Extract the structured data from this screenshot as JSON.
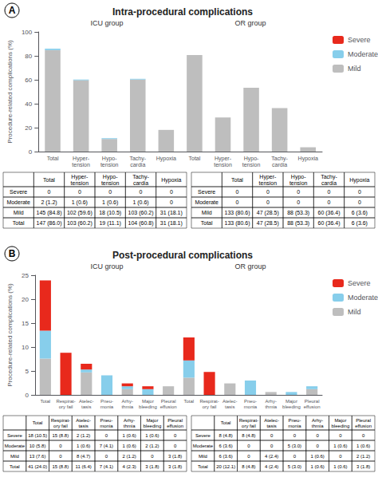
{
  "chart_data": [
    {
      "type": "bar",
      "title": "Intra-procedural complications",
      "panel_label": "A",
      "ylabel": "Procedure-related complications (%)",
      "groups": [
        "ICU group",
        "OR group"
      ],
      "categories": [
        "Total",
        "Hyper-\ntension",
        "Hypo-\ntension",
        "Tachy-\ncardia",
        "Hypoxia",
        "Total",
        "Hyper-\ntension",
        "Hypo-\ntension",
        "Tachy-\ncardia",
        "Hypoxia"
      ],
      "series": [
        {
          "name": "Mild",
          "color": "#BEBEBE",
          "values": [
            84.8,
            59.6,
            10.5,
            60.2,
            18.1,
            80.6,
            28.5,
            53.3,
            36.4,
            3.6
          ]
        },
        {
          "name": "Moderate",
          "color": "#87CEEB",
          "values": [
            1.2,
            0.6,
            0.6,
            0.6,
            0.0,
            0.0,
            0.0,
            0.0,
            0.0,
            0.0
          ]
        },
        {
          "name": "Severe",
          "color": "#E8291C",
          "values": [
            0.0,
            0.0,
            0.0,
            0.0,
            0.0,
            0.0,
            0.0,
            0.0,
            0.0,
            0.0
          ]
        }
      ],
      "stacked": true,
      "grid": false,
      "legend": "right",
      "ylim": [
        0,
        100
      ],
      "yticks": [
        0,
        20,
        40,
        60,
        80,
        100
      ],
      "tables": [
        {
          "columns": [
            "Total",
            "Hyper-\ntension",
            "Hypo-\ntension",
            "Tachy-\ncardia",
            "Hypoxia"
          ],
          "rows": [
            "Severe",
            "Moderate",
            "Mild",
            "Total"
          ],
          "cells": [
            [
              "0",
              "0",
              "0",
              "0",
              "0"
            ],
            [
              "2 (1.2)",
              "1 (0.6)",
              "1 (0.6)",
              "1 (0.6)",
              "0"
            ],
            [
              "145 (84.8)",
              "102 (59.6)",
              "18 (10.5)",
              "103 (60.2)",
              "31 (18.1)"
            ],
            [
              "147 (86.0)",
              "103 (60.2)",
              "19 (11.1)",
              "104 (60.8)",
              "31 (18.1)"
            ]
          ]
        },
        {
          "columns": [
            "Total",
            "Hyper-\ntension",
            "Hypo-\ntension",
            "Tachy-\ncardia",
            "Hypoxia"
          ],
          "rows": [
            "Severe",
            "Moderate",
            "Mild",
            "Total"
          ],
          "cells": [
            [
              "0",
              "0",
              "0",
              "0",
              "0"
            ],
            [
              "0",
              "0",
              "0",
              "0",
              "0"
            ],
            [
              "133 (80.6)",
              "47 (28.5)",
              "88 (53.3)",
              "60 (36.4)",
              "6 (3.6)"
            ],
            [
              "133 (80.6)",
              "47 (28.5)",
              "88 (53.3)",
              "60 (36.4)",
              "6 (3.6)"
            ]
          ]
        }
      ]
    },
    {
      "type": "bar",
      "title": "Post-procedural complications",
      "panel_label": "B",
      "ylabel": "Procedure-related complications (%)",
      "groups": [
        "ICU group",
        "OR group"
      ],
      "categories": [
        "Total",
        "Respirat-\nory fail",
        "Atelec-\ntasis",
        "Pneu-\nmonia",
        "Arhy-\nthmia",
        "Major\nbleeding",
        "Pleural\neffusion",
        "Total",
        "Respirat-\nory fail",
        "Atelec-\ntasis",
        "Pneu-\nmonia",
        "Arhy-\nthmia",
        "Major\nbleeding",
        "Pleural\neffusion"
      ],
      "series": [
        {
          "name": "Mild",
          "color": "#BEBEBE",
          "values": [
            7.6,
            0.0,
            4.7,
            0.0,
            1.2,
            0.0,
            1.8,
            3.6,
            0.0,
            2.4,
            0.0,
            0.6,
            0.0,
            1.2
          ]
        },
        {
          "name": "Moderate",
          "color": "#87CEEB",
          "values": [
            5.8,
            0.0,
            0.6,
            4.1,
            0.6,
            1.2,
            0.0,
            3.6,
            0.0,
            0.0,
            3.0,
            0.0,
            0.6,
            0.6
          ]
        },
        {
          "name": "Severe",
          "color": "#E8291C",
          "values": [
            10.5,
            8.8,
            1.2,
            0.0,
            0.6,
            0.6,
            0.0,
            4.8,
            4.8,
            0.0,
            0.0,
            0.0,
            0.0,
            0.0
          ]
        }
      ],
      "stacked": true,
      "grid": false,
      "legend": "right",
      "ylim": [
        0,
        25
      ],
      "yticks": [
        0,
        5,
        10,
        15,
        20,
        25
      ],
      "tables": [
        {
          "columns": [
            "Total",
            "Respirat-\nory fail",
            "Atelec-\ntasis",
            "Pneu-\nmonia",
            "Arhy-\nthmia",
            "Major\nbleeding",
            "Pleural\neffusion"
          ],
          "rows": [
            "Severe",
            "Moderate",
            "Mild",
            "Total"
          ],
          "cells": [
            [
              "18 (10.5)",
              "15 (8.8)",
              "2 (1.2)",
              "0",
              "1 (0.6)",
              "1 (0.6)",
              "0"
            ],
            [
              "10 (5.8)",
              "0",
              "1 (0.6)",
              "7 (4.1)",
              "1 (0.6)",
              "2 (1.2)",
              "0"
            ],
            [
              "13 (7.6)",
              "0",
              "8 (4.7)",
              "0",
              "2 (1.2)",
              "0",
              "3 (1.8)"
            ],
            [
              "41 (24.0)",
              "15 (8.8)",
              "11 (6.4)",
              "7 (4.1)",
              "4 (2.3)",
              "3 (1.8)",
              "3 (1.8)"
            ]
          ]
        },
        {
          "columns": [
            "Total",
            "Respirat-\nory fail",
            "Atelec-\ntasis",
            "Pneu-\nmonia",
            "Arhy-\nthmia",
            "Major\nbleeding",
            "Pleural\neffusion"
          ],
          "rows": [
            "Severe",
            "Moderate",
            "Mild",
            "Total"
          ],
          "cells": [
            [
              "8 (4.8)",
              "8 (4.8)",
              "0",
              "0",
              "0",
              "0",
              "0"
            ],
            [
              "6 (3.6)",
              "0",
              "0",
              "5 (3.0)",
              "0",
              "1 (0.6)",
              "1 (0.6)"
            ],
            [
              "6 (3.6)",
              "0",
              "4 (2.4)",
              "0",
              "1 (0.6)",
              "0",
              "2 (1.2)"
            ],
            [
              "20 (12.1)",
              "8 (4.8)",
              "4 (2.4)",
              "5 (3.0)",
              "1 (0.6)",
              "1 (0.6)",
              "3 (1.8)"
            ]
          ]
        }
      ]
    }
  ]
}
